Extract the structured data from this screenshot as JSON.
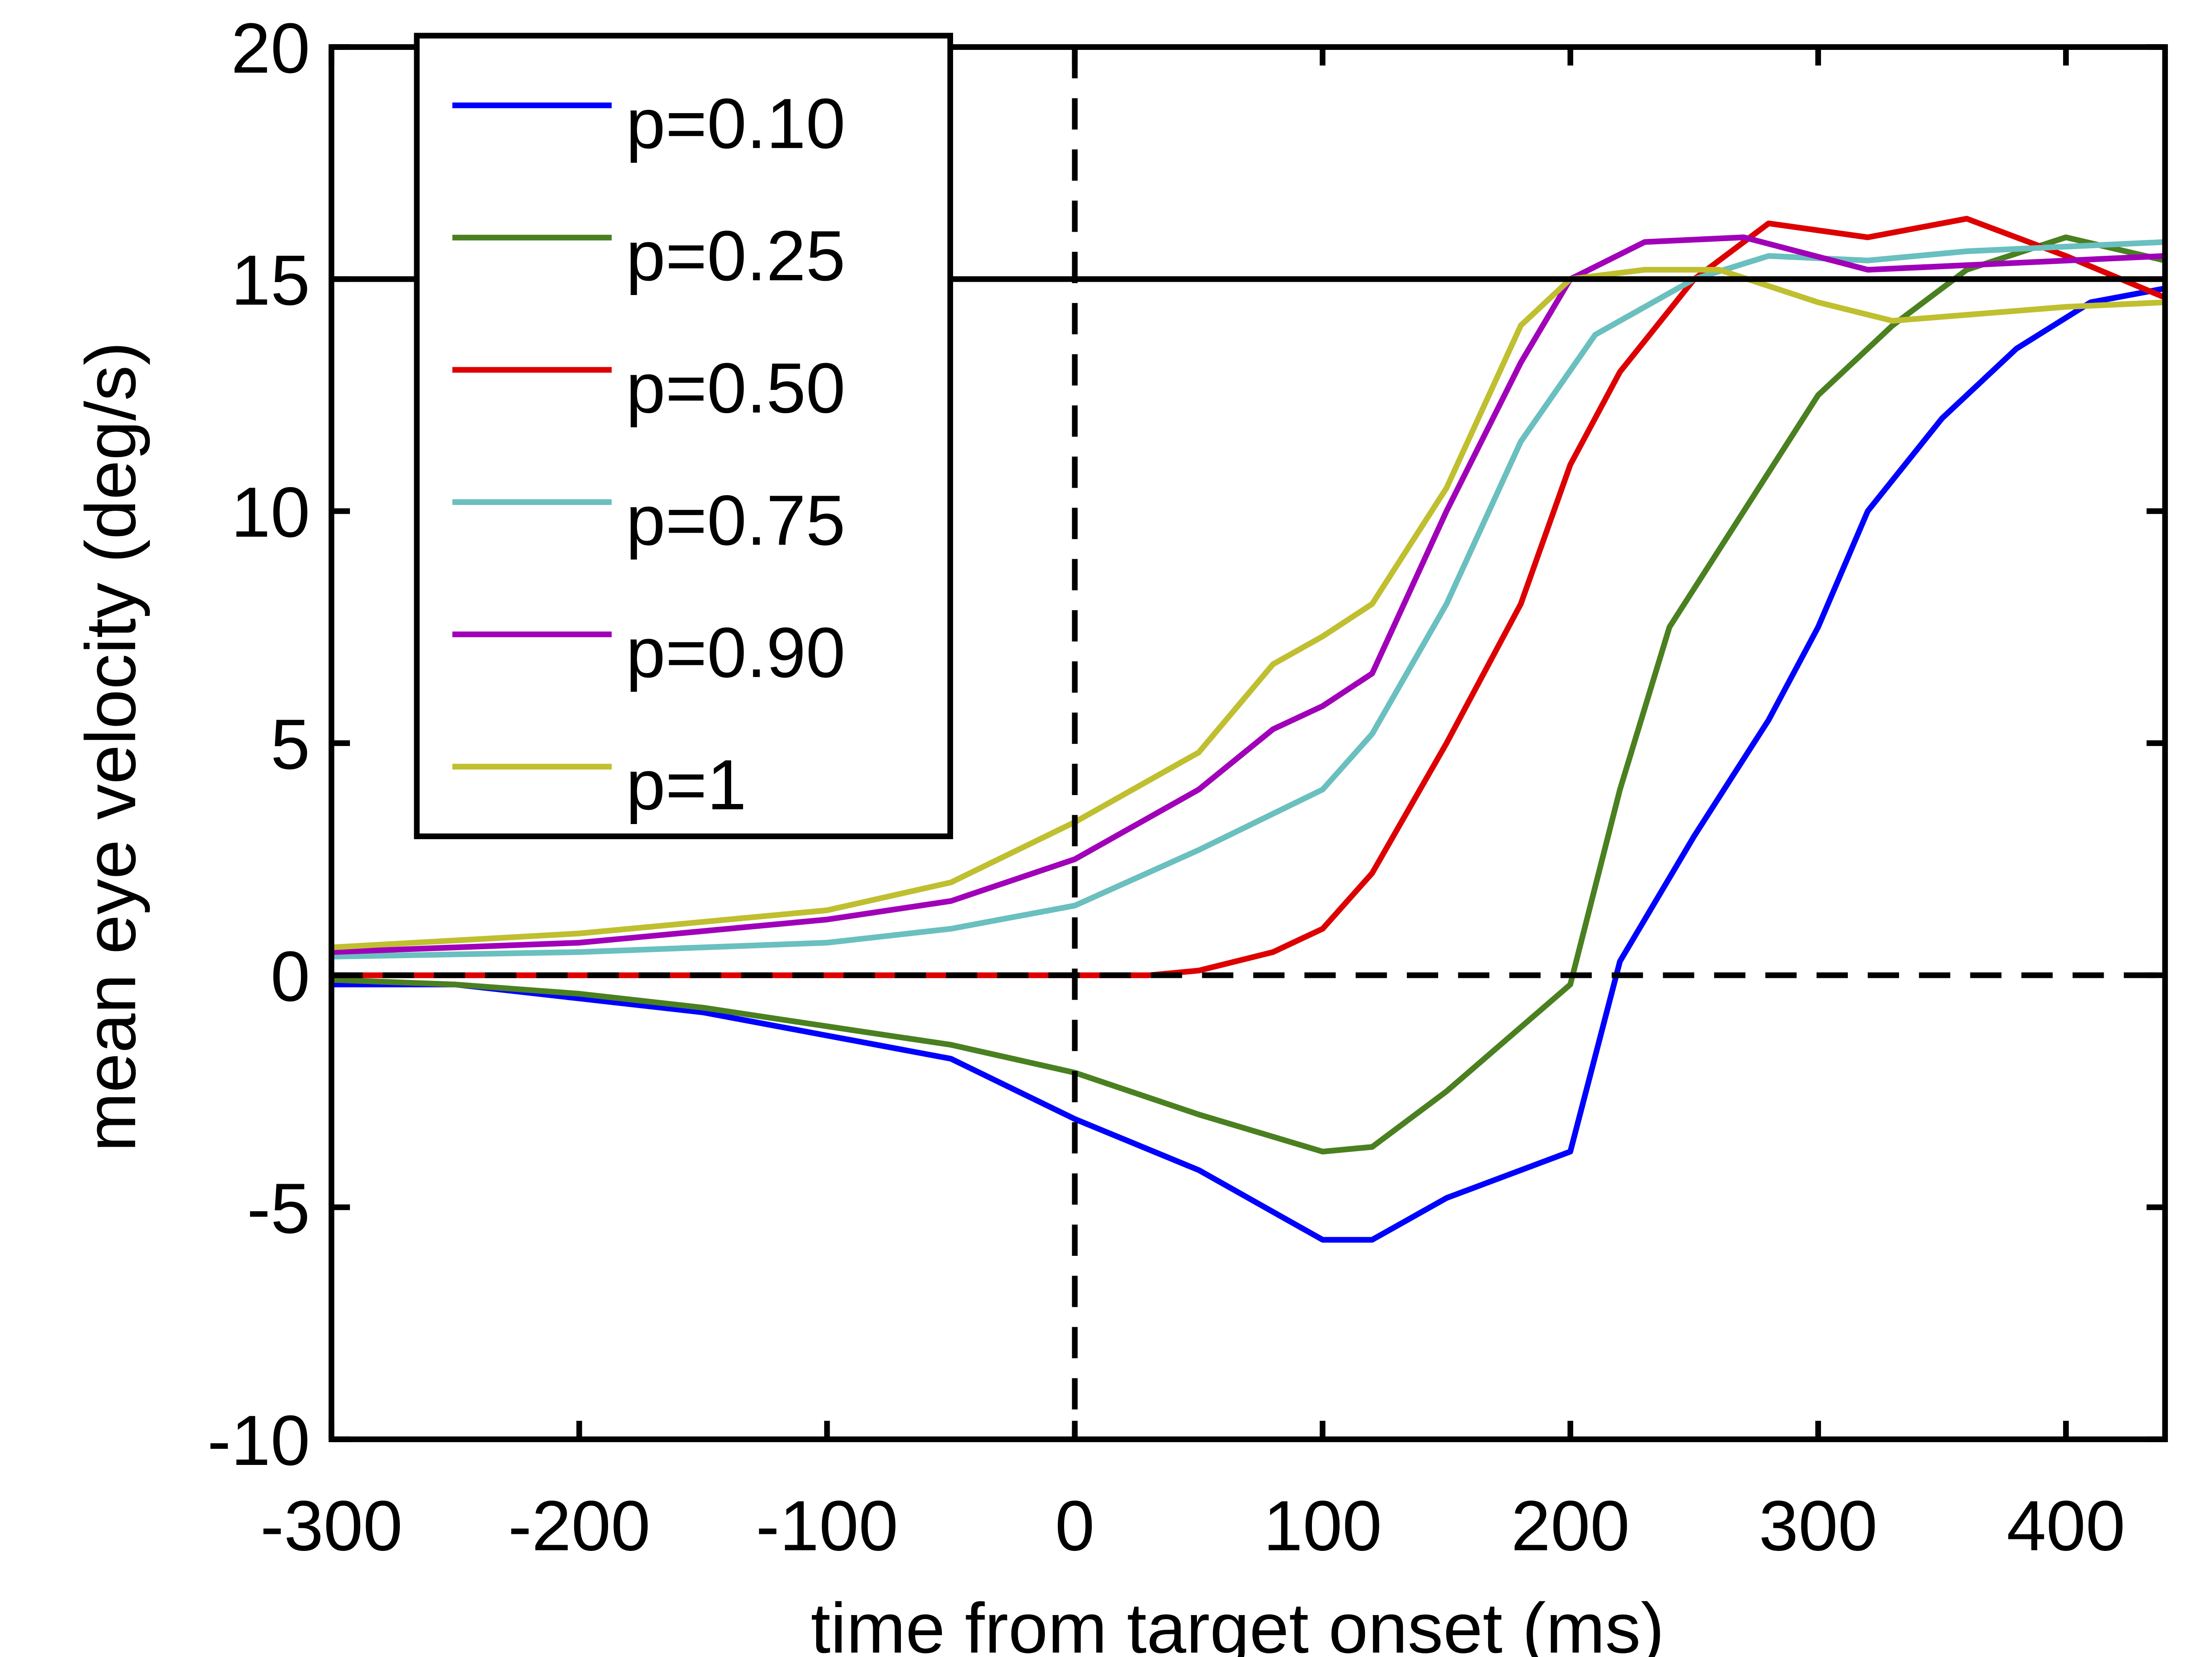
{
  "chart_data": {
    "type": "line",
    "title": "",
    "xlabel": "time from target onset (ms)",
    "ylabel": "mean eye velocity (deg/s)",
    "xlim": [
      -300,
      440
    ],
    "ylim": [
      -10,
      20
    ],
    "xticks": [
      -300,
      -200,
      -100,
      0,
      100,
      200,
      300,
      400
    ],
    "yticks": [
      -10,
      -5,
      0,
      5,
      10,
      15,
      20
    ],
    "grid": false,
    "legend_position": "top-left",
    "reference_lines": {
      "horizontal_solid": 15,
      "horizontal_dashed": 0,
      "vertical_dashed": 0
    },
    "series": [
      {
        "name": "p=0.10",
        "color": "#0000ff",
        "x": [
          -300,
          -250,
          -200,
          -150,
          -100,
          -50,
          0,
          50,
          100,
          120,
          150,
          200,
          220,
          250,
          280,
          300,
          320,
          350,
          380,
          410,
          440
        ],
        "y": [
          -0.2,
          -0.2,
          -0.5,
          -0.8,
          -1.3,
          -1.8,
          -3.1,
          -4.2,
          -5.7,
          -5.7,
          -4.8,
          -3.8,
          0.3,
          3,
          5.5,
          7.5,
          10,
          12,
          13.5,
          14.5,
          14.8
        ]
      },
      {
        "name": "p=0.25",
        "color": "#4a8020",
        "x": [
          -300,
          -250,
          -200,
          -150,
          -100,
          -50,
          0,
          50,
          100,
          120,
          150,
          200,
          220,
          240,
          270,
          300,
          330,
          360,
          400,
          440
        ],
        "y": [
          -0.1,
          -0.2,
          -0.4,
          -0.7,
          -1.1,
          -1.5,
          -2.1,
          -3,
          -3.8,
          -3.7,
          -2.5,
          -0.2,
          4,
          7.5,
          10,
          12.5,
          14,
          15.2,
          15.9,
          15.4
        ]
      },
      {
        "name": "p=0.50",
        "color": "#dd0000",
        "x": [
          -300,
          -200,
          -100,
          0,
          30,
          50,
          80,
          100,
          120,
          150,
          180,
          200,
          220,
          250,
          280,
          320,
          360,
          400,
          440
        ],
        "y": [
          0,
          0,
          0,
          0,
          0,
          0.1,
          0.5,
          1,
          2.2,
          5,
          8,
          11,
          13,
          15,
          16.2,
          15.9,
          16.3,
          15.5,
          14.6
        ]
      },
      {
        "name": "p=0.75",
        "color": "#6abfbf",
        "x": [
          -300,
          -200,
          -100,
          -50,
          0,
          50,
          100,
          120,
          150,
          180,
          210,
          250,
          280,
          320,
          360,
          440
        ],
        "y": [
          0.4,
          0.5,
          0.7,
          1,
          1.5,
          2.7,
          4,
          5.2,
          8,
          11.5,
          13.8,
          15,
          15.5,
          15.4,
          15.6,
          15.8
        ]
      },
      {
        "name": "p=0.90",
        "color": "#a000b8",
        "x": [
          -300,
          -200,
          -100,
          -50,
          0,
          50,
          80,
          100,
          120,
          150,
          180,
          200,
          230,
          270,
          320,
          360,
          440
        ],
        "y": [
          0.5,
          0.7,
          1.2,
          1.6,
          2.5,
          4,
          5.3,
          5.8,
          6.5,
          10,
          13.2,
          15,
          15.8,
          15.9,
          15.2,
          15.3,
          15.5
        ]
      },
      {
        "name": "p=1",
        "color": "#bfbf30",
        "x": [
          -300,
          -200,
          -100,
          -50,
          0,
          50,
          80,
          100,
          120,
          150,
          180,
          200,
          230,
          260,
          300,
          330,
          400,
          440
        ],
        "y": [
          0.6,
          0.9,
          1.4,
          2,
          3.3,
          4.8,
          6.7,
          7.3,
          8,
          10.5,
          14,
          15,
          15.2,
          15.2,
          14.5,
          14.1,
          14.4,
          14.5
        ]
      }
    ]
  }
}
